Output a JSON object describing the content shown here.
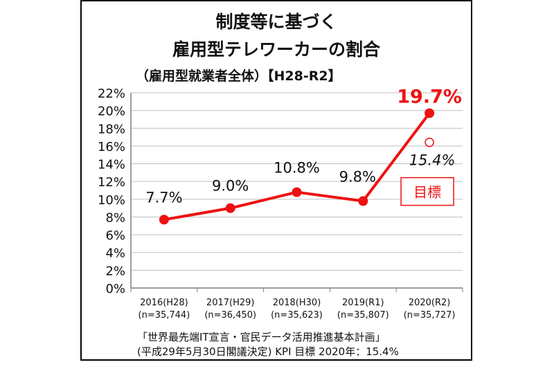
{
  "header": {
    "title_line1": "制度等に基づく",
    "title_line2": "雇用型テレワーカーの割合",
    "subtitle": "（雇用型就業者全体）【H28-R2】"
  },
  "footer": {
    "line1": "「世界最先端IT宣言・官民データ活用推進基本計画」",
    "line2": "(平成29年5月30日閣議決定)  KPI  目標   2020年：15.4%"
  },
  "colors": {
    "series": "#ee1111",
    "grid": "#bfbfbf",
    "axis": "#7f7f7f",
    "text": "#111111"
  },
  "chart_data": {
    "type": "line",
    "categories": [
      "2016(H28)",
      "2017(H29)",
      "2018(H30)",
      "2019(R1)",
      "2020(R2)"
    ],
    "category_sublabels": [
      "(n=35,744)",
      "(n=36,450)",
      "(n=35,623)",
      "(n=35,807)",
      "(n=35,727)"
    ],
    "series": [
      {
        "values": [
          7.7,
          9.0,
          10.8,
          9.8,
          19.7
        ]
      }
    ],
    "data_labels": [
      "7.7%",
      "9.0%",
      "10.8%",
      "9.8%",
      "19.7%"
    ],
    "ylim": [
      0,
      22
    ],
    "yticks": [
      0,
      2,
      4,
      6,
      8,
      10,
      12,
      14,
      16,
      18,
      20,
      22
    ],
    "ytick_labels": [
      "0%",
      "2%",
      "4%",
      "6%",
      "8%",
      "10%",
      "12%",
      "14%",
      "16%",
      "18%",
      "20%",
      "22%"
    ],
    "grid": true,
    "target": {
      "category_index": 4,
      "value": 15.4,
      "label": "15.4%",
      "badge": "目標"
    }
  }
}
